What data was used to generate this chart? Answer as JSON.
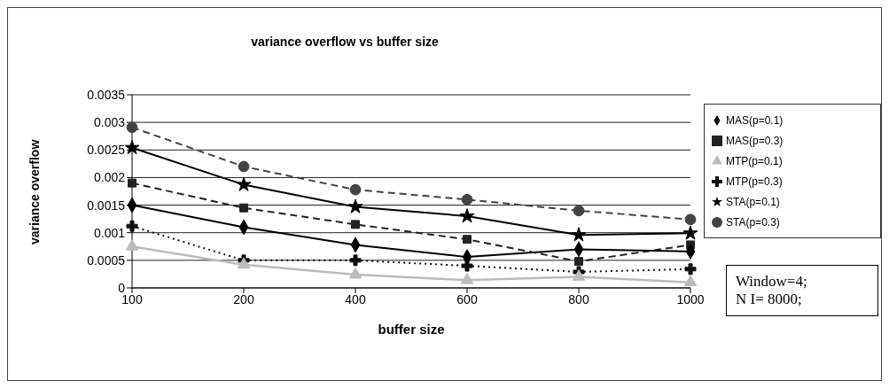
{
  "chart_data": {
    "type": "line",
    "title": "variance overflow vs buffer size",
    "xlabel": "buffer size",
    "ylabel": "variance overflow",
    "categories": [
      "100",
      "200",
      "400",
      "600",
      "800",
      "1000"
    ],
    "ylim": [
      0,
      0.0035
    ],
    "yticks": [
      0,
      0.0005,
      0.001,
      0.0015,
      0.002,
      0.0025,
      0.003,
      0.0035
    ],
    "grid": "y",
    "legend": "right",
    "annotations": [
      "Window=4;\nN I= 8000;"
    ],
    "series": [
      {
        "name": "MAS(p=0.1)",
        "color": "#000000",
        "marker": "diamond",
        "line_style": "solid",
        "values": [
          0.0015,
          0.0011,
          0.00078,
          0.00056,
          0.0007,
          0.00066
        ]
      },
      {
        "name": "MAS(p=0.3)",
        "color": "#222222",
        "marker": "square",
        "line_style": "dashed",
        "values": [
          0.0019,
          0.00145,
          0.00115,
          0.00088,
          0.00048,
          0.00078
        ]
      },
      {
        "name": "MTP(p=0.1)",
        "color": "#bbbbbb",
        "marker": "triangle",
        "line_style": "solid",
        "values": [
          0.00075,
          0.00042,
          0.00024,
          0.00014,
          0.0002,
          0.0001
        ]
      },
      {
        "name": "MTP(p=0.3)",
        "color": "#111111",
        "marker": "cross",
        "line_style": "dotted",
        "values": [
          0.00112,
          0.0005,
          0.0005,
          0.0004,
          0.00029,
          0.00034
        ]
      },
      {
        "name": "STA(p=0.1)",
        "color": "#000000",
        "marker": "star",
        "line_style": "solid",
        "values": [
          0.00254,
          0.00187,
          0.00147,
          0.0013,
          0.00096,
          0.00099
        ]
      },
      {
        "name": "STA(p=0.3)",
        "color": "#444444",
        "marker": "circle",
        "line_style": "dashed",
        "values": [
          0.00291,
          0.0022,
          0.00178,
          0.0016,
          0.0014,
          0.00124
        ]
      }
    ]
  }
}
